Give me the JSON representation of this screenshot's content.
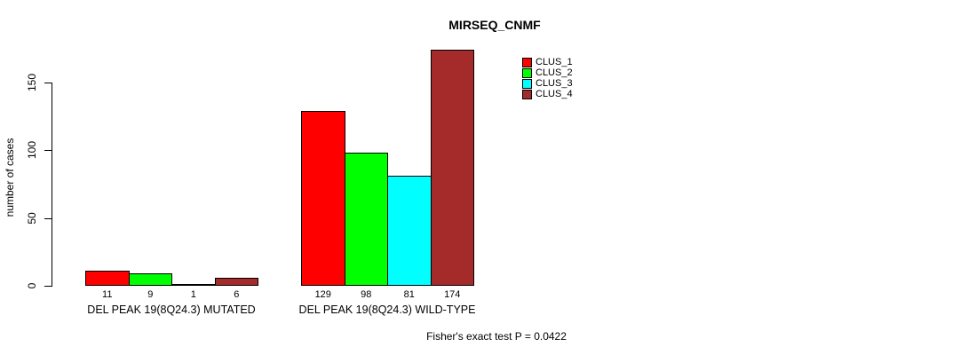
{
  "title": "MIRSEQ_CNMF",
  "footer": "Fisher's exact test P = 0.0422",
  "chart_data": {
    "type": "bar",
    "title": "MIRSEQ_CNMF",
    "xlabel": "",
    "ylabel": "number of cases",
    "ylim": [
      0,
      175
    ],
    "yticks": [
      0,
      50,
      100,
      150
    ],
    "grid": false,
    "legend_position": "top-right",
    "categories": [
      "DEL PEAK 19(8Q24.3) MUTATED",
      "DEL PEAK 19(8Q24.3) WILD-TYPE"
    ],
    "series": [
      {
        "name": "CLUS_1",
        "color": "#FF0000",
        "values": [
          11,
          129
        ]
      },
      {
        "name": "CLUS_2",
        "color": "#00FF00",
        "values": [
          9,
          98
        ]
      },
      {
        "name": "CLUS_3",
        "color": "#00FFFF",
        "values": [
          1,
          81
        ]
      },
      {
        "name": "CLUS_4",
        "color": "#A52A2A",
        "values": [
          6,
          174
        ]
      }
    ],
    "groups": [
      {
        "label": "DEL PEAK 19(8Q24.3) MUTATED",
        "values": [
          11,
          9,
          1,
          6
        ]
      },
      {
        "label": "DEL PEAK 19(8Q24.3) WILD-TYPE",
        "values": [
          129,
          98,
          81,
          174
        ]
      }
    ],
    "bar_value_labels": true,
    "annotation": "Fisher's exact test P = 0.0422"
  }
}
